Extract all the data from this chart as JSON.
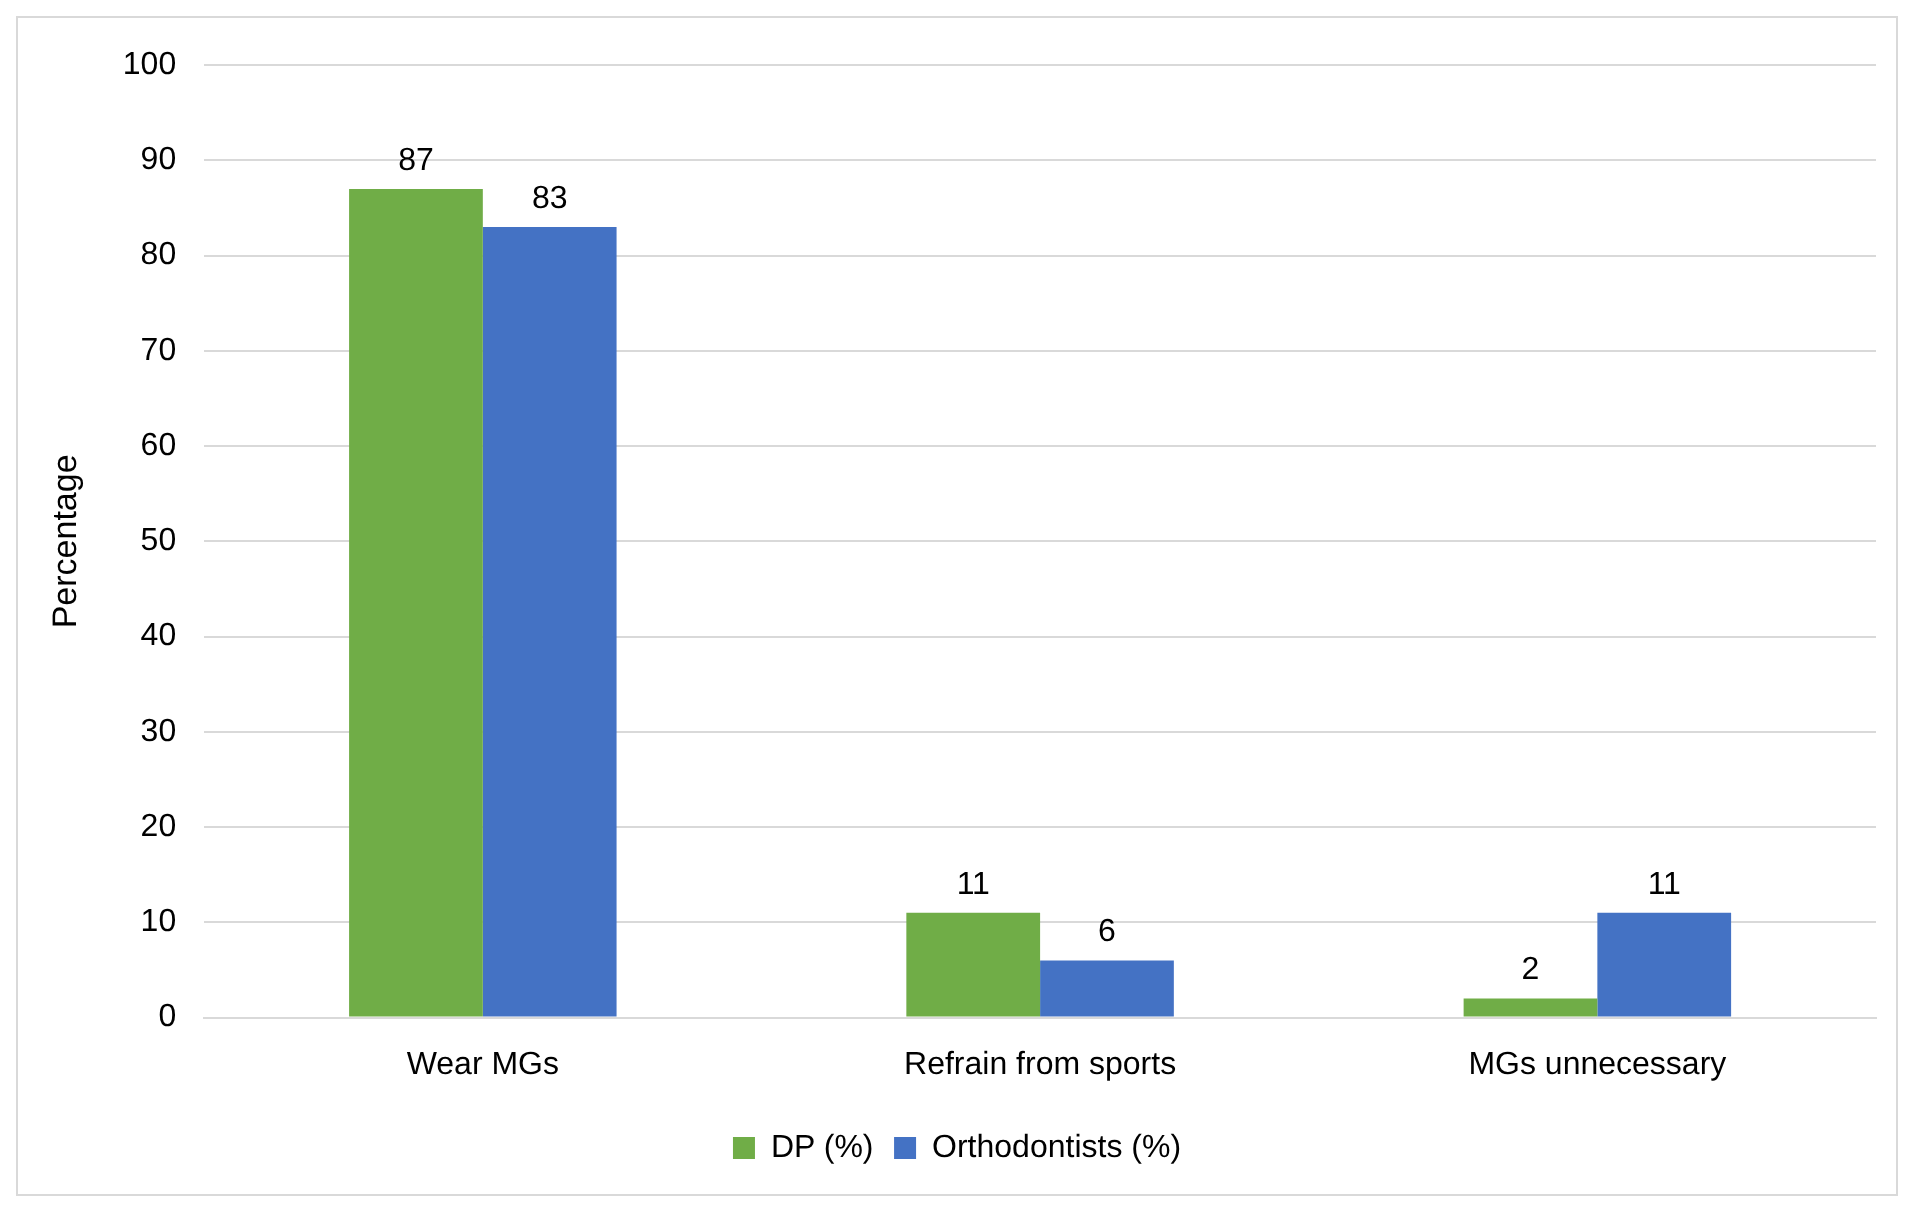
{
  "chart_data": {
    "type": "bar",
    "ylabel": "Percentage",
    "categories": [
      "Wear MGs",
      "Refrain from sports",
      "MGs unnecessary"
    ],
    "series": [
      {
        "name": "DP (%)",
        "color": "#70ad47",
        "values": [
          87,
          11,
          2
        ]
      },
      {
        "name": "Orthodontists (%)",
        "color": "#4472c4",
        "values": [
          83,
          6,
          11
        ]
      }
    ],
    "ylim": [
      0,
      100
    ],
    "yticks": [
      0,
      10,
      20,
      30,
      40,
      50,
      60,
      70,
      80,
      90,
      100
    ],
    "grid": "y",
    "legend": "bottom",
    "data_labels": true
  }
}
